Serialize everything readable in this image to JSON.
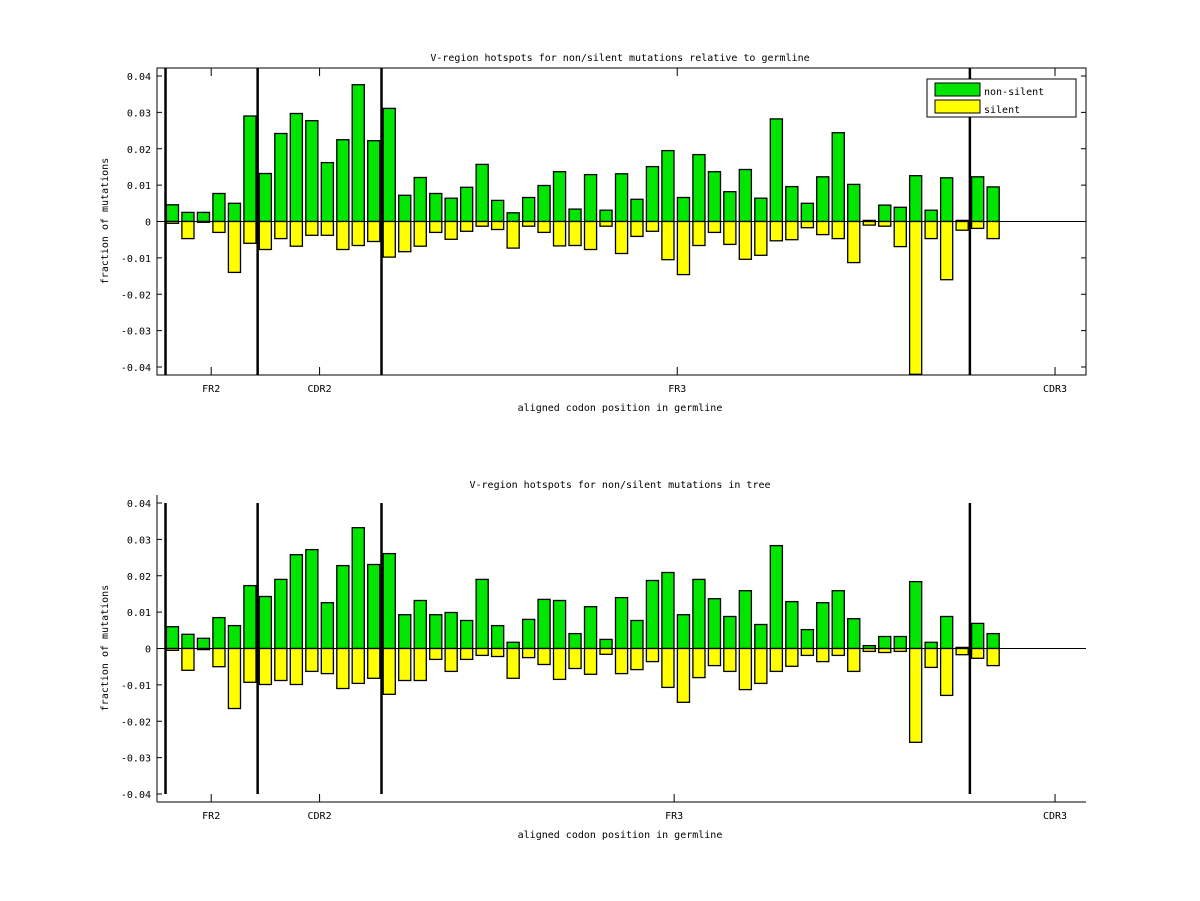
{
  "colors": {
    "non_silent": "#00e600",
    "silent": "#ffff00",
    "edge": "#000000",
    "background": "#ffffff"
  },
  "chart_data": [
    {
      "type": "bar",
      "title": "V-region hotspots for non/silent mutations relative to germline",
      "xlabel": "aligned codon position in germline",
      "ylabel": "fraction of mutations",
      "ylim": [
        -0.04,
        0.04
      ],
      "xlim": [
        0,
        60
      ],
      "yticks": [
        "0.04",
        "0.03",
        "0.02",
        "0.01",
        "0",
        "-0.01",
        "-0.02",
        "-0.03",
        "-0.04"
      ],
      "ytick_values": [
        0.04,
        0.03,
        0.02,
        0.01,
        0,
        -0.01,
        -0.02,
        -0.03,
        -0.04
      ],
      "region_labels": [
        {
          "label": "FR2",
          "x": 3.5
        },
        {
          "label": "CDR2",
          "x": 10.5
        },
        {
          "label": "FR3",
          "x": 33.6
        },
        {
          "label": "CDR3",
          "x": 58
        }
      ],
      "region_boundaries": [
        0.55,
        6.5,
        14.5,
        52.5
      ],
      "legend": {
        "placement": "top-right",
        "entries": [
          "non-silent",
          "silent"
        ]
      },
      "box": true,
      "x": [
        1,
        2,
        3,
        4,
        5,
        6,
        7,
        8,
        9,
        10,
        11,
        12,
        13,
        14,
        15,
        16,
        17,
        18,
        19,
        20,
        21,
        22,
        23,
        24,
        25,
        26,
        27,
        28,
        29,
        30,
        31,
        32,
        33,
        34,
        35,
        36,
        37,
        38,
        39,
        40,
        41,
        42,
        43,
        44,
        45,
        46,
        47,
        48,
        49,
        50,
        51,
        52,
        53,
        54
      ],
      "series": [
        {
          "name": "non-silent",
          "values": [
            0.0046,
            0.0025,
            0.0025,
            0.0077,
            0.005,
            0.029,
            0.0132,
            0.0242,
            0.0297,
            0.0277,
            0.0162,
            0.0225,
            0.0376,
            0.0222,
            0.0311,
            0.0072,
            0.0121,
            0.0077,
            0.0064,
            0.0094,
            0.0157,
            0.0058,
            0.0024,
            0.0066,
            0.0099,
            0.0137,
            0.0034,
            0.0129,
            0.0031,
            0.0131,
            0.0061,
            0.0151,
            0.0195,
            0.0066,
            0.0184,
            0.0137,
            0.0082,
            0.0143,
            0.0064,
            0.0282,
            0.0096,
            0.005,
            0.0123,
            0.0244,
            0.0102,
            0.0003,
            0.0045,
            0.0039,
            0.0126,
            0.0031,
            0.012,
            0.0003,
            0.0123,
            0.0095
          ]
        },
        {
          "name": "silent",
          "values": [
            -0.0005,
            -0.0047,
            0,
            -0.003,
            -0.014,
            -0.006,
            -0.0077,
            -0.0047,
            -0.0068,
            -0.0038,
            -0.0038,
            -0.0077,
            -0.0066,
            -0.0055,
            -0.0098,
            -0.0083,
            -0.0068,
            -0.003,
            -0.0049,
            -0.0027,
            -0.0013,
            -0.0022,
            -0.0073,
            -0.0013,
            -0.003,
            -0.0067,
            -0.0066,
            -0.0077,
            -0.0013,
            -0.0088,
            -0.0041,
            -0.0027,
            -0.0105,
            -0.0146,
            -0.0066,
            -0.003,
            -0.0063,
            -0.0104,
            -0.0093,
            -0.0053,
            -0.005,
            -0.0017,
            -0.0036,
            -0.0047,
            -0.0113,
            -0.001,
            -0.0013,
            -0.0069,
            -0.042,
            -0.0047,
            -0.016,
            -0.0024,
            -0.0019,
            -0.0047
          ]
        }
      ]
    },
    {
      "type": "bar",
      "title": "V-region hotspots for non/silent mutations in tree",
      "xlabel": "aligned codon position in germline",
      "ylabel": "fraction of mutations",
      "ylim": [
        -0.04,
        0.04
      ],
      "xlim": [
        0,
        60
      ],
      "yticks": [
        "0.04",
        "0.03",
        "0.02",
        "0.01",
        "0",
        "-0.01",
        "-0.02",
        "-0.03",
        "-0.04"
      ],
      "ytick_values": [
        0.04,
        0.03,
        0.02,
        0.01,
        0,
        -0.01,
        -0.02,
        -0.03,
        -0.04
      ],
      "region_labels": [
        {
          "label": "FR2",
          "x": 3.5
        },
        {
          "label": "CDR2",
          "x": 10.5
        },
        {
          "label": "FR3",
          "x": 33.4
        },
        {
          "label": "CDR3",
          "x": 58
        }
      ],
      "region_boundaries": [
        0.55,
        6.5,
        14.5,
        52.5
      ],
      "box": false,
      "x": [
        1,
        2,
        3,
        4,
        5,
        6,
        7,
        8,
        9,
        10,
        11,
        12,
        13,
        14,
        15,
        16,
        17,
        18,
        19,
        20,
        21,
        22,
        23,
        24,
        25,
        26,
        27,
        28,
        29,
        30,
        31,
        32,
        33,
        34,
        35,
        36,
        37,
        38,
        39,
        40,
        41,
        42,
        43,
        44,
        45,
        46,
        47,
        48,
        49,
        50,
        51,
        52,
        53,
        54
      ],
      "series": [
        {
          "name": "non-silent",
          "values": [
            0.006,
            0.0039,
            0.0028,
            0.0085,
            0.0063,
            0.0173,
            0.0143,
            0.019,
            0.0258,
            0.0272,
            0.0126,
            0.0228,
            0.0332,
            0.0231,
            0.0261,
            0.0093,
            0.0132,
            0.0093,
            0.0099,
            0.0077,
            0.019,
            0.0063,
            0.0017,
            0.008,
            0.0135,
            0.0132,
            0.0041,
            0.0115,
            0.0025,
            0.014,
            0.0077,
            0.0187,
            0.0209,
            0.0093,
            0.019,
            0.0137,
            0.0088,
            0.0159,
            0.0066,
            0.0283,
            0.0129,
            0.0052,
            0.0126,
            0.0159,
            0.0082,
            0.0008,
            0.0033,
            0.0033,
            0.0184,
            0.0017,
            0.0088,
            0.0003,
            0.0069,
            0.0041
          ]
        },
        {
          "name": "silent",
          "values": [
            -0.0005,
            -0.006,
            -0.0003,
            -0.005,
            -0.0165,
            -0.0093,
            -0.0099,
            -0.0088,
            -0.0099,
            -0.0063,
            -0.0069,
            -0.011,
            -0.0096,
            -0.0082,
            -0.0126,
            -0.0088,
            -0.0088,
            -0.003,
            -0.0063,
            -0.003,
            -0.0019,
            -0.0022,
            -0.0082,
            -0.0025,
            -0.0044,
            -0.0085,
            -0.0055,
            -0.0071,
            -0.0016,
            -0.0069,
            -0.0058,
            -0.0036,
            -0.0107,
            -0.0148,
            -0.008,
            -0.0047,
            -0.0063,
            -0.0113,
            -0.0096,
            -0.0063,
            -0.0049,
            -0.0019,
            -0.0036,
            -0.0019,
            -0.0063,
            -0.0008,
            -0.0011,
            -0.0008,
            -0.0258,
            -0.0052,
            -0.0129,
            -0.0017,
            -0.0027,
            -0.0047
          ]
        }
      ]
    }
  ]
}
